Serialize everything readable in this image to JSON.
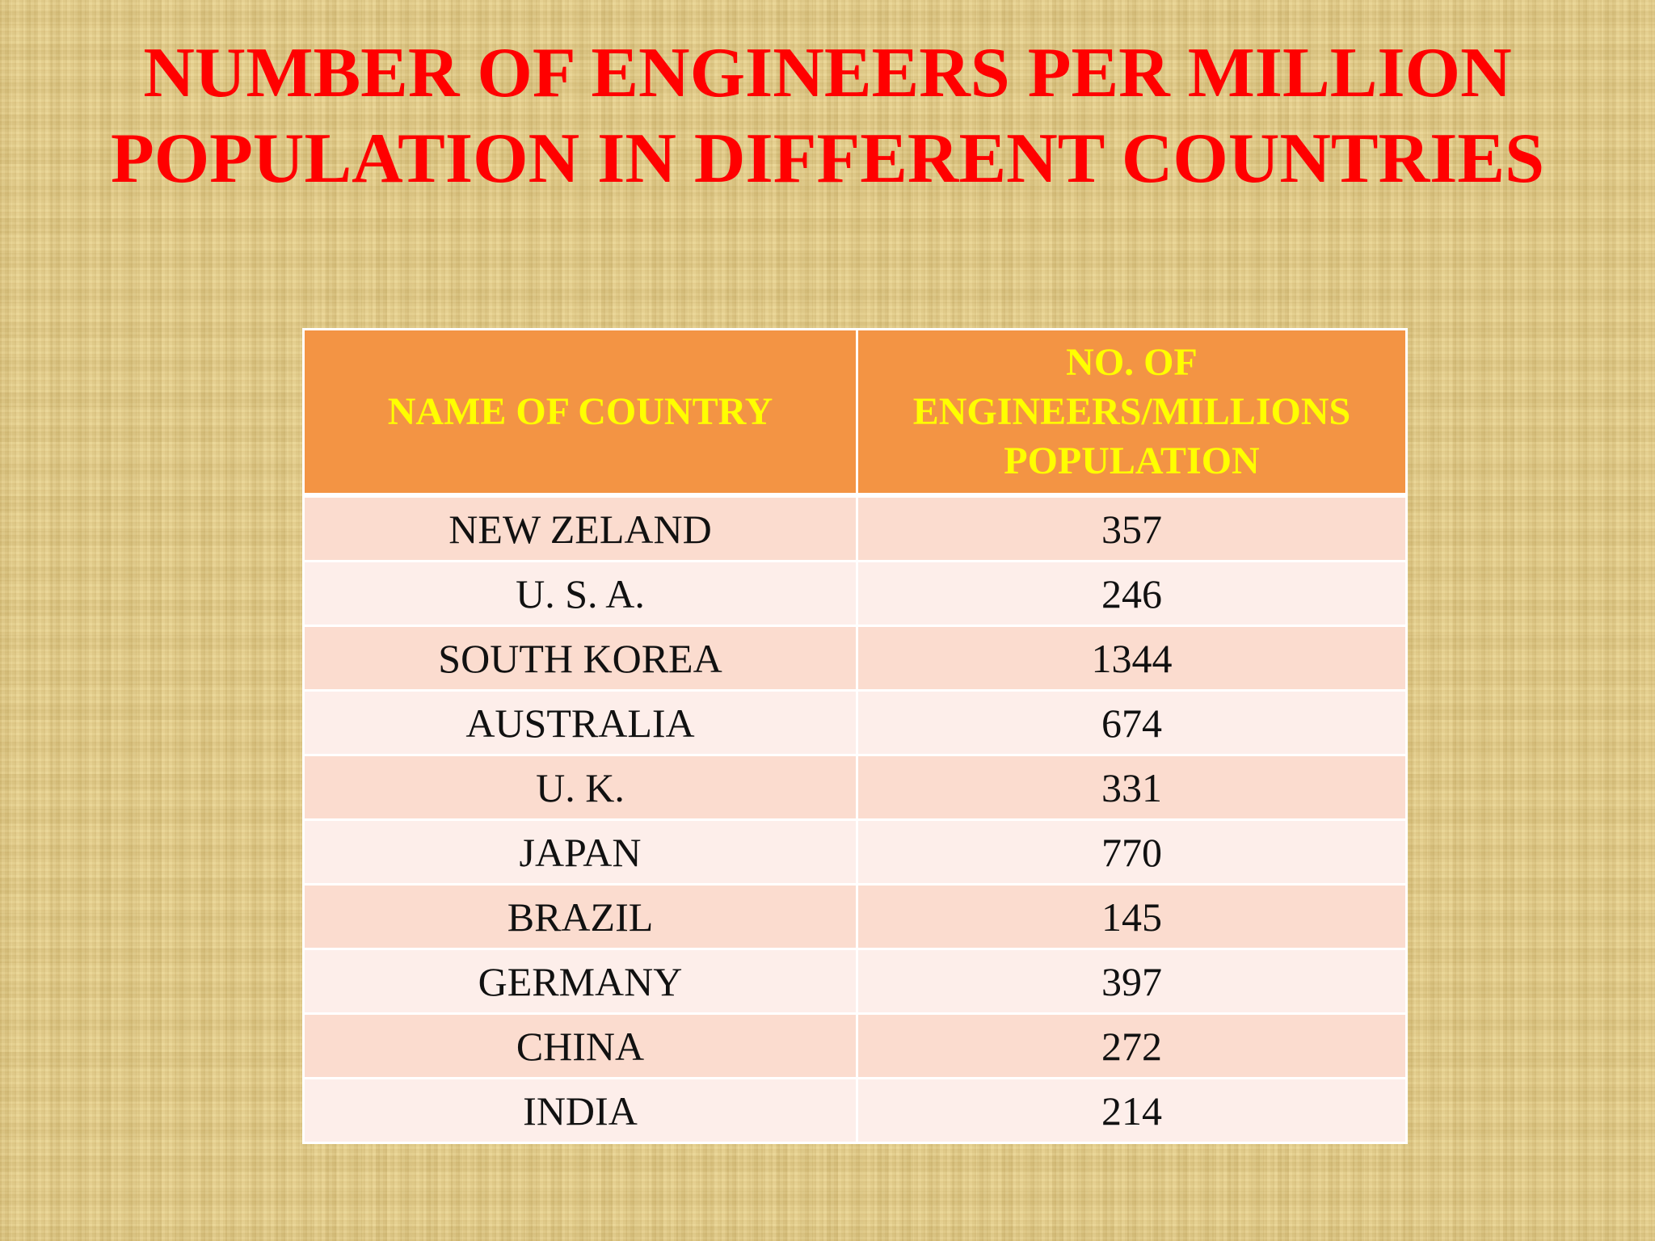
{
  "title": "NUMBER OF ENGINEERS PER MILLION POPULATION IN DIFFERENT COUNTRIES",
  "table": {
    "headers": [
      "NAME OF COUNTRY",
      "NO. OF ENGINEERS/MILLIONS POPULATION"
    ],
    "rows": [
      [
        "NEW ZELAND",
        "357"
      ],
      [
        "U. S. A.",
        "246"
      ],
      [
        "SOUTH KOREA",
        "1344"
      ],
      [
        "AUSTRALIA",
        "674"
      ],
      [
        "U. K.",
        "331"
      ],
      [
        "JAPAN",
        "770"
      ],
      [
        "BRAZIL",
        "145"
      ],
      [
        "GERMANY",
        "397"
      ],
      [
        "CHINA",
        "272"
      ],
      [
        "INDIA",
        "214"
      ]
    ]
  },
  "colors": {
    "title": "#ff0000",
    "header_background": "#f39444",
    "header_text": "#ffff00",
    "row_odd": "#fbdccf",
    "row_even": "#fdeeea",
    "background": "#e6cf8c"
  }
}
